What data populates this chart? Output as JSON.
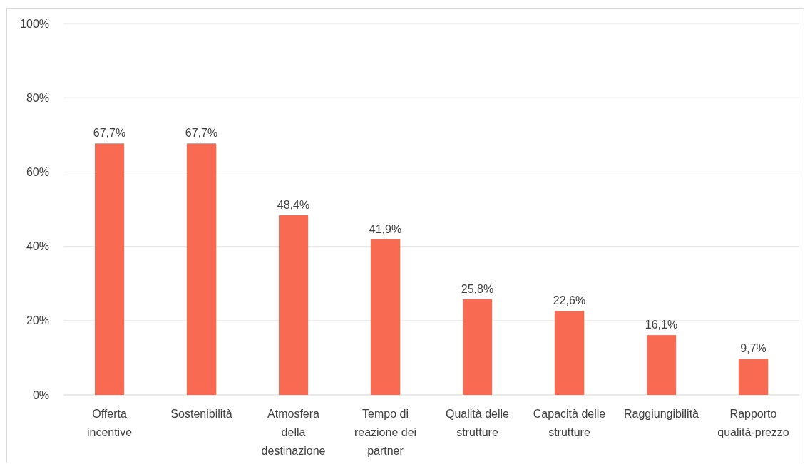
{
  "chart_data": {
    "type": "bar",
    "categories": [
      "Offerta incentive",
      "Sostenibilità",
      "Atmosfera della destinazione",
      "Tempo di reazione dei partner",
      "Qualità delle strutture",
      "Capacità delle strutture",
      "Raggiungibilità",
      "Rapporto qualità-prezzo"
    ],
    "values": [
      67.7,
      67.7,
      48.4,
      41.9,
      25.8,
      22.6,
      16.1,
      9.7
    ],
    "color": "#f96a53",
    "value_labels": [
      "67,7%",
      "67,7%",
      "48,4%",
      "41,9%",
      "25,8%",
      "22,6%",
      "16,1%",
      "9,7%"
    ],
    "ylim": [
      0,
      100
    ],
    "yticks": [
      {
        "value": 0,
        "label": "0%"
      },
      {
        "value": 20,
        "label": "20%"
      },
      {
        "value": 40,
        "label": "40%"
      },
      {
        "value": 60,
        "label": "60%"
      },
      {
        "value": 80,
        "label": "80%"
      },
      {
        "value": 100,
        "label": "100%"
      }
    ],
    "grid": "y"
  }
}
